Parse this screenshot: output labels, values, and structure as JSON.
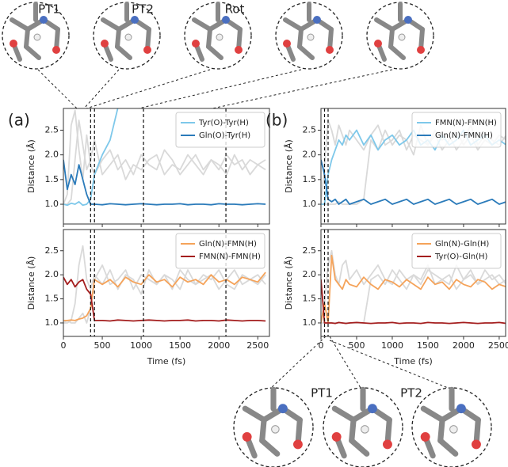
{
  "chart_data": [
    {
      "type": "line",
      "panel": "(a)",
      "ylabel": "Distance (Å)",
      "xlim": [
        0,
        2650
      ],
      "ylim": [
        0.6,
        2.94
      ],
      "xticks": [
        0,
        500,
        1000,
        1500,
        2000,
        2500
      ],
      "yticks": [
        {
          "value": 1,
          "label": "1.0"
        },
        {
          "value": 1.5,
          "label": "1.5"
        },
        {
          "value": 2,
          "label": "2.0"
        },
        {
          "value": 2.5,
          "label": "2.5"
        }
      ],
      "event_times": [
        350,
        400,
        1030,
        2090
      ],
      "x": [
        0,
        50,
        100,
        150,
        200,
        250,
        300,
        350,
        400,
        500,
        600,
        700,
        800,
        900,
        1000,
        1100,
        1200,
        1300,
        1400,
        1500,
        1600,
        1700,
        1800,
        1900,
        2000,
        2100,
        2200,
        2300,
        2400,
        2500,
        2600
      ],
      "background_series": [
        {
          "color": "#d9d9d9",
          "values": [
            1.0,
            1.2,
            2.6,
            2.9,
            2.1,
            1.5,
            2.4,
            1.8,
            1.6,
            1.9,
            2.1,
            1.7,
            1.9,
            1.6,
            2.0,
            1.8,
            1.7,
            2.1,
            1.9,
            1.6,
            1.8,
            2.0,
            1.7,
            1.9,
            1.8,
            1.6,
            2.0,
            1.7,
            1.9,
            1.8,
            1.7
          ]
        },
        {
          "color": "#d9d9d9",
          "values": [
            1.0,
            1.0,
            1.1,
            1.9,
            2.7,
            2.2,
            1.7,
            1.9,
            2.3,
            1.6,
            1.8,
            2.0,
            1.5,
            1.8,
            1.7,
            1.9,
            2.0,
            1.6,
            1.8,
            1.7,
            2.0,
            1.8,
            1.6,
            1.9,
            1.7,
            2.0,
            1.8,
            1.9,
            1.6,
            1.8,
            1.9
          ]
        }
      ],
      "legend": "upper right",
      "series": [
        {
          "name": "Tyr(O)-Tyr(H)",
          "color": "#7ec8ea",
          "values": [
            1.0,
            0.98,
            1.02,
            1.0,
            1.05,
            0.98,
            1.0,
            1.1,
            1.6,
            2.0,
            2.3,
            2.95,
            null,
            null,
            null,
            null,
            null,
            null,
            null,
            null,
            null,
            null,
            null,
            null,
            null,
            null,
            null,
            null,
            null,
            null,
            null
          ]
        },
        {
          "name": "Gln(O)-Tyr(H)",
          "color": "#2b7bba",
          "values": [
            1.9,
            1.3,
            1.6,
            1.4,
            1.8,
            1.5,
            1.2,
            1.0,
            1.0,
            0.99,
            1.01,
            1.0,
            0.99,
            1.0,
            1.01,
            1.0,
            0.99,
            1.0,
            1.0,
            1.01,
            0.99,
            1.0,
            1.0,
            0.99,
            1.01,
            1.0,
            1.0,
            0.99,
            1.0,
            1.01,
            1.0
          ]
        }
      ]
    },
    {
      "type": "line",
      "ylabel": "Distance (Å)",
      "xlabel": "Time (fs)",
      "xlim": [
        0,
        2650
      ],
      "ylim": [
        0.72,
        2.94
      ],
      "xticks": [
        0,
        500,
        1000,
        1500,
        2000,
        2500
      ],
      "yticks": [
        {
          "value": 1,
          "label": "1.0"
        },
        {
          "value": 1.5,
          "label": "1.5"
        },
        {
          "value": 2,
          "label": "2.0"
        },
        {
          "value": 2.5,
          "label": "2.5"
        }
      ],
      "event_times": [
        350,
        400,
        1030,
        2090
      ],
      "x": [
        0,
        50,
        100,
        150,
        200,
        250,
        300,
        350,
        400,
        500,
        600,
        700,
        800,
        900,
        1000,
        1100,
        1200,
        1300,
        1400,
        1500,
        1600,
        1700,
        1800,
        1900,
        2000,
        2100,
        2200,
        2300,
        2400,
        2500,
        2600
      ],
      "background_series": [
        {
          "color": "#d9d9d9",
          "values": [
            1.0,
            1.0,
            1.05,
            1.4,
            2.2,
            2.6,
            1.9,
            1.7,
            2.0,
            1.8,
            2.1,
            1.7,
            2.0,
            1.9,
            1.6,
            2.1,
            1.8,
            2.0,
            1.9,
            1.7,
            2.1,
            1.8,
            1.9,
            2.0,
            1.7,
            1.9,
            2.1,
            1.8,
            1.9,
            2.0,
            1.8
          ]
        },
        {
          "color": "#d9d9d9",
          "values": [
            1.0,
            1.05,
            1.0,
            1.0,
            1.1,
            1.2,
            1.0,
            1.3,
            1.9,
            2.2,
            1.8,
            1.9,
            2.1,
            1.7,
            2.0,
            1.9,
            1.8,
            2.0,
            1.7,
            2.1,
            1.9,
            1.8,
            2.0,
            1.9,
            2.1,
            1.8,
            1.7,
            2.0,
            1.9,
            1.8,
            2.0
          ]
        }
      ],
      "legend": "upper right",
      "series": [
        {
          "name": "Gln(N)-FMN(H)",
          "color": "#f5a35a",
          "values": [
            1.05,
            1.05,
            1.06,
            1.05,
            1.08,
            1.1,
            1.15,
            1.3,
            1.9,
            1.8,
            1.9,
            1.75,
            1.95,
            1.85,
            1.8,
            2.0,
            1.85,
            1.9,
            1.75,
            1.95,
            1.85,
            1.9,
            1.8,
            2.0,
            1.85,
            1.9,
            1.8,
            1.95,
            1.9,
            1.85,
            2.05
          ]
        },
        {
          "name": "FMN(N)-FMN(H)",
          "color": "#a41e1e",
          "values": [
            1.95,
            1.8,
            1.9,
            1.75,
            1.85,
            1.9,
            1.7,
            1.6,
            1.05,
            1.05,
            1.04,
            1.06,
            1.05,
            1.04,
            1.05,
            1.06,
            1.05,
            1.04,
            1.05,
            1.05,
            1.06,
            1.04,
            1.05,
            1.05,
            1.04,
            1.06,
            1.05,
            1.04,
            1.05,
            1.05,
            1.04
          ]
        }
      ]
    },
    {
      "type": "line",
      "panel": "(b)",
      "ylabel": "Distance (Å)",
      "xlim": [
        0,
        2590
      ],
      "ylim": [
        0.6,
        2.94
      ],
      "xticks": [
        0,
        500,
        1000,
        1500,
        2000,
        2500
      ],
      "yticks": [
        {
          "value": 1,
          "label": "1.0"
        },
        {
          "value": 1.5,
          "label": "1.5"
        },
        {
          "value": 2,
          "label": "2.0"
        },
        {
          "value": 2.5,
          "label": "2.5"
        }
      ],
      "event_times": [
        50,
        100
      ],
      "x": [
        0,
        50,
        100,
        150,
        200,
        250,
        300,
        350,
        400,
        500,
        600,
        700,
        800,
        900,
        1000,
        1100,
        1200,
        1300,
        1400,
        1500,
        1600,
        1700,
        1800,
        1900,
        2000,
        2100,
        2200,
        2300,
        2400,
        2500,
        2600
      ],
      "background_series": [
        {
          "color": "#d9d9d9",
          "values": [
            1.0,
            1.0,
            1.0,
            1.0,
            1.0,
            1.05,
            1.0,
            1.0,
            1.0,
            1.0,
            1.1,
            2.3,
            2.1,
            2.5,
            2.2,
            2.4,
            2.3,
            2.0,
            2.6,
            2.2,
            2.4,
            2.1,
            2.3,
            2.5,
            2.2,
            2.4,
            2.1,
            2.3,
            2.2,
            2.4,
            2.3
          ]
        },
        {
          "color": "#d9d9d9",
          "values": [
            1.0,
            1.8,
            2.7,
            2.5,
            2.2,
            2.6,
            2.4,
            2.2,
            2.5,
            2.3,
            2.1,
            2.4,
            2.6,
            2.2,
            2.3,
            2.5,
            2.1,
            2.4,
            2.3,
            2.2,
            2.5,
            2.3,
            2.4,
            2.1,
            2.3,
            2.6,
            2.2,
            2.4,
            2.3,
            2.2,
            2.4
          ]
        }
      ],
      "legend": "upper right",
      "series": [
        {
          "name": "FMN(N)-FMN(H)",
          "color": "#7ec8ea",
          "values": [
            1.0,
            1.0,
            1.6,
            1.9,
            2.1,
            2.3,
            2.2,
            2.4,
            2.3,
            2.5,
            2.2,
            2.4,
            2.1,
            2.3,
            2.4,
            2.2,
            2.3,
            2.5,
            2.2,
            2.3,
            2.1,
            2.4,
            2.2,
            2.3,
            2.5,
            2.2,
            2.3,
            2.4,
            2.2,
            2.3,
            2.2
          ]
        },
        {
          "name": "Gln(N)-FMN(H)",
          "color": "#2b7bba",
          "values": [
            1.9,
            1.6,
            1.1,
            1.05,
            1.1,
            1.0,
            1.05,
            1.1,
            1.0,
            1.05,
            1.1,
            1.0,
            1.05,
            1.1,
            1.0,
            1.05,
            1.1,
            1.0,
            1.05,
            1.1,
            1.0,
            1.05,
            1.1,
            1.0,
            1.05,
            1.1,
            1.0,
            1.05,
            1.1,
            1.0,
            1.05
          ]
        }
      ]
    },
    {
      "type": "line",
      "ylabel": "Distance (Å)",
      "xlabel": "Time (fs)",
      "xlim": [
        0,
        2590
      ],
      "ylim": [
        0.72,
        2.94
      ],
      "xticks": [
        0,
        500,
        1000,
        1500,
        2000,
        2500
      ],
      "yticks": [
        {
          "value": 1,
          "label": "1.0"
        },
        {
          "value": 1.5,
          "label": "1.5"
        },
        {
          "value": 2,
          "label": "2.0"
        },
        {
          "value": 2.5,
          "label": "2.5"
        }
      ],
      "event_times": [
        50,
        100
      ],
      "x": [
        0,
        50,
        100,
        150,
        200,
        250,
        300,
        350,
        400,
        500,
        600,
        700,
        800,
        900,
        1000,
        1100,
        1200,
        1300,
        1400,
        1500,
        1600,
        1700,
        1800,
        1900,
        2000,
        2100,
        2200,
        2300,
        2400,
        2500,
        2600
      ],
      "background_series": [
        {
          "color": "#d9d9d9",
          "values": [
            1.0,
            1.0,
            1.0,
            1.0,
            1.0,
            1.0,
            1.0,
            1.0,
            1.0,
            1.0,
            1.0,
            1.9,
            2.0,
            1.8,
            2.1,
            1.9,
            1.7,
            2.0,
            1.9,
            2.2,
            1.8,
            1.9,
            2.0,
            1.7,
            1.9,
            2.1,
            1.8,
            1.9,
            2.0,
            1.8,
            1.9
          ]
        },
        {
          "color": "#d9d9d9",
          "values": [
            1.0,
            1.4,
            2.2,
            2.5,
            2.0,
            1.8,
            2.2,
            2.3,
            1.9,
            2.1,
            1.8,
            2.0,
            2.2,
            1.9,
            1.8,
            2.1,
            1.9,
            2.0,
            1.8,
            2.1,
            2.0,
            1.9,
            1.8,
            2.2,
            1.9,
            2.0,
            1.8,
            2.1,
            1.9,
            2.0,
            1.8
          ]
        }
      ],
      "legend": "upper right",
      "series": [
        {
          "name": "Gln(N)-Gln(H)",
          "color": "#f5a35a",
          "values": [
            1.0,
            1.4,
            1.0,
            2.4,
            1.9,
            1.8,
            1.7,
            1.9,
            1.8,
            1.75,
            1.95,
            1.8,
            1.7,
            1.9,
            1.85,
            1.75,
            1.9,
            1.8,
            1.7,
            1.95,
            1.8,
            1.85,
            1.7,
            1.9,
            1.8,
            1.75,
            1.9,
            1.85,
            1.7,
            1.8,
            1.75
          ]
        },
        {
          "name": "Tyr(O)-Gln(H)",
          "color": "#a41e1e",
          "values": [
            1.9,
            1.0,
            1.0,
            1.0,
            0.99,
            1.01,
            1.0,
            0.99,
            1.0,
            1.01,
            1.0,
            0.99,
            1.0,
            1.0,
            1.01,
            0.99,
            1.0,
            1.0,
            0.99,
            1.01,
            1.0,
            1.0,
            0.99,
            1.0,
            1.01,
            1.0,
            0.99,
            1.0,
            1.0,
            1.01,
            0.99
          ]
        }
      ]
    }
  ],
  "insets": {
    "top": [
      "PT1",
      "PT2",
      "Rot"
    ],
    "bottom": [
      "PT1",
      "PT2"
    ]
  }
}
